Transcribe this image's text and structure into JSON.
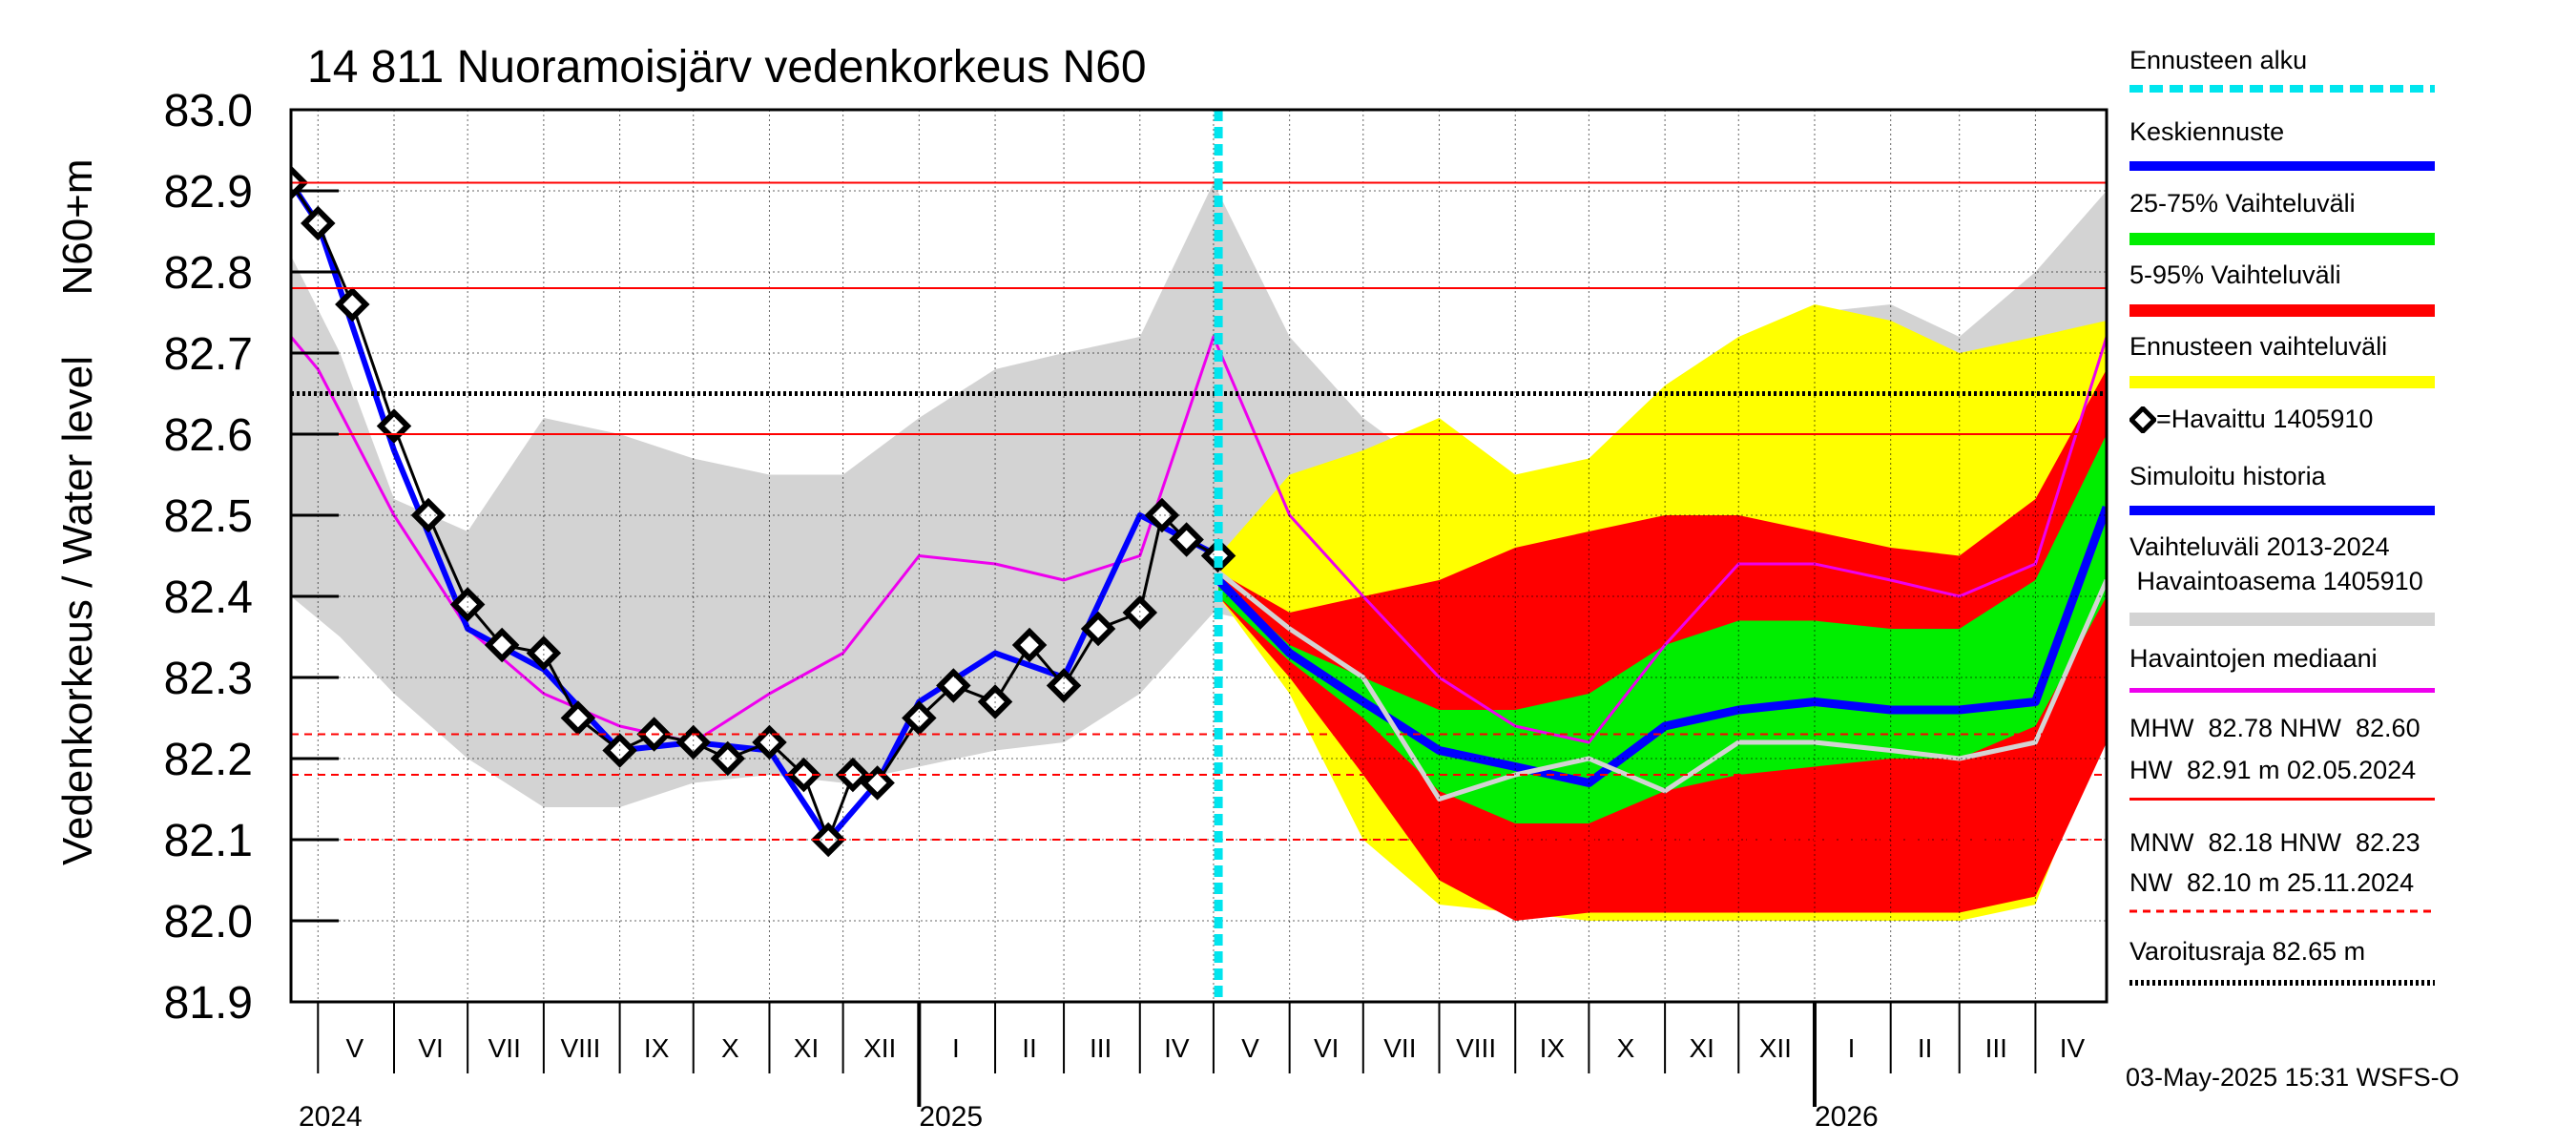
{
  "chart_data": {
    "type": "area",
    "title": "14 811 Nuoramoisjärv vedenkorkeus N60",
    "ylabel_left": "Vedenkorkeus / Water level",
    "ylabel_right": "N60+m",
    "ylim": [
      81.9,
      83.0
    ],
    "yticks": [
      "81.9",
      "82.0",
      "82.1",
      "82.2",
      "82.3",
      "82.4",
      "82.5",
      "82.6",
      "82.7",
      "82.8",
      "82.9",
      "83.0"
    ],
    "x_start": "2024-04-20",
    "x_end": "2026-04-30",
    "forecast_start": "2025-05-03",
    "month_labels": [
      {
        "date": "2024-05-16",
        "label": "V"
      },
      {
        "date": "2024-06-16",
        "label": "VI"
      },
      {
        "date": "2024-07-16",
        "label": "VII"
      },
      {
        "date": "2024-08-16",
        "label": "VIII"
      },
      {
        "date": "2024-09-16",
        "label": "IX"
      },
      {
        "date": "2024-10-16",
        "label": "X"
      },
      {
        "date": "2024-11-16",
        "label": "XI"
      },
      {
        "date": "2024-12-16",
        "label": "XII"
      },
      {
        "date": "2025-01-16",
        "label": "I"
      },
      {
        "date": "2025-02-15",
        "label": "II"
      },
      {
        "date": "2025-03-16",
        "label": "III"
      },
      {
        "date": "2025-04-16",
        "label": "IV"
      },
      {
        "date": "2025-05-16",
        "label": "V"
      },
      {
        "date": "2025-06-16",
        "label": "VI"
      },
      {
        "date": "2025-07-16",
        "label": "VII"
      },
      {
        "date": "2025-08-16",
        "label": "VIII"
      },
      {
        "date": "2025-09-16",
        "label": "IX"
      },
      {
        "date": "2025-10-16",
        "label": "X"
      },
      {
        "date": "2025-11-16",
        "label": "XI"
      },
      {
        "date": "2025-12-16",
        "label": "XII"
      },
      {
        "date": "2026-01-16",
        "label": "I"
      },
      {
        "date": "2026-02-15",
        "label": "II"
      },
      {
        "date": "2026-03-16",
        "label": "III"
      },
      {
        "date": "2026-04-16",
        "label": "IV"
      }
    ],
    "year_labels": [
      {
        "date": "2024-01-01",
        "label": "2024"
      },
      {
        "date": "2025-01-01",
        "label": "2025"
      },
      {
        "date": "2026-01-01",
        "label": "2026"
      }
    ],
    "reference_lines": [
      {
        "name": "HW",
        "value": 82.91,
        "style": "solid",
        "color": "#ff0000"
      },
      {
        "name": "MHW",
        "value": 82.78,
        "style": "solid",
        "color": "#ff0000"
      },
      {
        "name": "Varoitusraja",
        "value": 82.65,
        "style": "dotted",
        "color": "#000000"
      },
      {
        "name": "NHW",
        "value": 82.6,
        "style": "solid",
        "color": "#ff0000"
      },
      {
        "name": "HNW",
        "value": 82.23,
        "style": "dashed",
        "color": "#ff0000"
      },
      {
        "name": "MNW",
        "value": 82.18,
        "style": "dashed",
        "color": "#ff0000"
      },
      {
        "name": "NW",
        "value": 82.1,
        "style": "dashed",
        "color": "#ff0000"
      }
    ],
    "series": [
      {
        "name": "Vaihteluväli 2013-2024 Havaintoasema 1405910",
        "kind": "band",
        "color": "#d3d3d3",
        "x": [
          "2024-04-20",
          "2024-05-10",
          "2024-06-01",
          "2024-07-01",
          "2024-08-01",
          "2024-09-01",
          "2024-10-01",
          "2024-11-01",
          "2024-12-01",
          "2025-01-01",
          "2025-02-01",
          "2025-03-01",
          "2025-04-01",
          "2025-05-01",
          "2025-06-01",
          "2025-07-01",
          "2025-08-01",
          "2025-09-01",
          "2025-10-01",
          "2025-11-01",
          "2025-12-01",
          "2026-01-01",
          "2026-02-01",
          "2026-03-01",
          "2026-04-01",
          "2026-04-30"
        ],
        "upper": [
          82.82,
          82.7,
          82.52,
          82.48,
          82.62,
          82.6,
          82.57,
          82.55,
          82.55,
          82.62,
          82.68,
          82.7,
          82.72,
          82.91,
          82.72,
          82.62,
          82.55,
          82.5,
          82.56,
          82.66,
          82.72,
          82.75,
          82.76,
          82.72,
          82.8,
          82.9
        ],
        "lower": [
          82.4,
          82.35,
          82.28,
          82.2,
          82.14,
          82.14,
          82.17,
          82.18,
          82.17,
          82.19,
          82.21,
          82.22,
          82.28,
          82.38,
          82.36,
          82.31,
          82.27,
          82.22,
          82.17,
          82.22,
          82.22,
          82.22,
          82.22,
          82.22,
          82.25,
          82.42
        ]
      },
      {
        "name": "Ennusteen vaihteluväli",
        "kind": "band",
        "color": "#ffff00",
        "x": [
          "2025-05-03",
          "2025-06-01",
          "2025-07-01",
          "2025-08-01",
          "2025-09-01",
          "2025-10-01",
          "2025-11-01",
          "2025-12-01",
          "2026-01-01",
          "2026-02-01",
          "2026-03-01",
          "2026-04-01",
          "2026-04-30"
        ],
        "upper": [
          82.45,
          82.55,
          82.58,
          82.62,
          82.55,
          82.57,
          82.66,
          82.72,
          82.76,
          82.74,
          82.7,
          82.72,
          82.74
        ],
        "lower": [
          82.4,
          82.28,
          82.1,
          82.02,
          82.01,
          82.0,
          82.0,
          82.0,
          82.0,
          82.0,
          82.0,
          82.02,
          82.25
        ]
      },
      {
        "name": "5-95% Vaihteluväli",
        "kind": "band",
        "color": "#ff0000",
        "x": [
          "2025-05-03",
          "2025-06-01",
          "2025-07-01",
          "2025-08-01",
          "2025-09-01",
          "2025-10-01",
          "2025-11-01",
          "2025-12-01",
          "2026-01-01",
          "2026-02-01",
          "2026-03-01",
          "2026-04-01",
          "2026-04-30"
        ],
        "upper": [
          82.43,
          82.38,
          82.4,
          82.42,
          82.46,
          82.48,
          82.5,
          82.5,
          82.48,
          82.46,
          82.45,
          82.52,
          82.68
        ],
        "lower": [
          82.4,
          82.3,
          82.18,
          82.05,
          82.0,
          82.01,
          82.01,
          82.01,
          82.01,
          82.01,
          82.01,
          82.03,
          82.22
        ]
      },
      {
        "name": "25-75% Vaihteluväli",
        "kind": "band",
        "color": "#00ee00",
        "x": [
          "2025-05-03",
          "2025-06-01",
          "2025-07-01",
          "2025-08-01",
          "2025-09-01",
          "2025-10-01",
          "2025-11-01",
          "2025-12-01",
          "2026-01-01",
          "2026-02-01",
          "2026-03-01",
          "2026-04-01",
          "2026-04-30"
        ],
        "upper": [
          82.42,
          82.34,
          82.3,
          82.26,
          82.26,
          82.28,
          82.34,
          82.37,
          82.37,
          82.36,
          82.36,
          82.42,
          82.6
        ],
        "lower": [
          82.4,
          82.32,
          82.25,
          82.16,
          82.12,
          82.12,
          82.16,
          82.18,
          82.19,
          82.2,
          82.2,
          82.24,
          82.4
        ]
      },
      {
        "name": "Havaintojen mediaani",
        "kind": "line",
        "color": "#ee00ee",
        "x": [
          "2024-04-20",
          "2024-05-01",
          "2024-06-01",
          "2024-07-01",
          "2024-08-01",
          "2024-09-01",
          "2024-10-01",
          "2024-11-01",
          "2024-12-01",
          "2025-01-01",
          "2025-02-01",
          "2025-03-01",
          "2025-04-01",
          "2025-05-01",
          "2025-06-01",
          "2025-07-01",
          "2025-08-01",
          "2025-09-01",
          "2025-10-01",
          "2025-11-01",
          "2025-12-01",
          "2026-01-01",
          "2026-02-01",
          "2026-03-01",
          "2026-04-01",
          "2026-04-30"
        ],
        "y": [
          82.72,
          82.68,
          82.5,
          82.36,
          82.28,
          82.24,
          82.22,
          82.28,
          82.33,
          82.45,
          82.44,
          82.42,
          82.45,
          82.72,
          82.5,
          82.4,
          82.3,
          82.24,
          82.22,
          82.34,
          82.44,
          82.44,
          82.42,
          82.4,
          82.44,
          82.72
        ]
      },
      {
        "name": "Simuloitu historia",
        "kind": "line",
        "color": "#0000ff",
        "x": [
          "2024-04-20",
          "2024-05-01",
          "2024-06-01",
          "2024-07-01",
          "2024-08-01",
          "2024-09-01",
          "2024-10-01",
          "2024-11-01",
          "2024-11-25",
          "2024-12-15",
          "2025-01-01",
          "2025-02-01",
          "2025-03-01",
          "2025-04-01",
          "2025-05-03"
        ],
        "y": [
          82.91,
          82.86,
          82.58,
          82.36,
          82.31,
          82.21,
          82.22,
          82.21,
          82.1,
          82.17,
          82.27,
          82.33,
          82.3,
          82.5,
          82.45
        ]
      },
      {
        "name": "Havaittu 1405910",
        "kind": "markers",
        "color": "#000000",
        "x": [
          "2024-04-20",
          "2024-05-01",
          "2024-05-15",
          "2024-06-01",
          "2024-06-15",
          "2024-07-01",
          "2024-07-15",
          "2024-08-01",
          "2024-08-15",
          "2024-09-01",
          "2024-09-15",
          "2024-10-01",
          "2024-10-15",
          "2024-11-01",
          "2024-11-15",
          "2024-11-25",
          "2024-12-05",
          "2024-12-15",
          "2025-01-01",
          "2025-01-15",
          "2025-02-01",
          "2025-02-15",
          "2025-03-01",
          "2025-03-15",
          "2025-04-01",
          "2025-04-10",
          "2025-04-20",
          "2025-05-03"
        ],
        "y": [
          82.91,
          82.86,
          82.76,
          82.61,
          82.5,
          82.39,
          82.34,
          82.33,
          82.25,
          82.21,
          82.23,
          82.22,
          82.2,
          82.22,
          82.18,
          82.1,
          82.18,
          82.17,
          82.25,
          82.29,
          82.27,
          82.34,
          82.29,
          82.36,
          82.38,
          82.5,
          82.47,
          82.45
        ]
      },
      {
        "name": "Keskiennuste",
        "kind": "line",
        "color": "#0000ff",
        "x": [
          "2025-05-03",
          "2025-06-01",
          "2025-07-01",
          "2025-08-01",
          "2025-09-01",
          "2025-10-01",
          "2025-11-01",
          "2025-12-01",
          "2026-01-01",
          "2026-02-01",
          "2026-03-01",
          "2026-04-01",
          "2026-04-30"
        ],
        "y": [
          82.42,
          82.33,
          82.27,
          82.21,
          82.19,
          82.17,
          82.24,
          82.26,
          82.27,
          82.26,
          82.26,
          82.27,
          82.51
        ]
      },
      {
        "name": "Vaihteluväli median",
        "kind": "line",
        "color": "#d3d3d3",
        "x": [
          "2025-05-03",
          "2025-06-01",
          "2025-07-01",
          "2025-08-01",
          "2025-09-01",
          "2025-10-01",
          "2025-11-01",
          "2025-12-01",
          "2026-01-01",
          "2026-02-01",
          "2026-03-01",
          "2026-04-01",
          "2026-04-30"
        ],
        "y": [
          82.43,
          82.36,
          82.3,
          82.15,
          82.18,
          82.2,
          82.16,
          82.22,
          82.22,
          82.21,
          82.2,
          82.22,
          82.42
        ]
      }
    ]
  },
  "legend": {
    "forecast_start": "Ennusteen alku",
    "mean_forecast": "Keskiennuste",
    "band_25_75": "25-75% Vaihteluväli",
    "band_5_95": "5-95% Vaihteluväli",
    "forecast_range": "Ennusteen vaihteluväli",
    "observed": "=Havaittu 1405910",
    "simulated": "Simuloitu historia",
    "range_line1": "Vaihteluväli 2013-2024",
    "range_line2": " Havaintoasema 1405910",
    "median": "Havaintojen mediaani",
    "stats_high_1": "MHW  82.78 NHW  82.60",
    "stats_high_2": "HW  82.91 m 02.05.2024",
    "stats_low_1": "MNW  82.18 HNW  82.23",
    "stats_low_2": "NW  82.10 m 25.11.2024",
    "warning": "Varoitusraja 82.65 m"
  },
  "colors": {
    "forecast_start": "#00e5ee",
    "mean_forecast": "#0000ff",
    "band_25_75": "#00ee00",
    "band_5_95": "#ff0000",
    "forecast_range": "#ffff00",
    "simulated": "#0000ff",
    "range": "#d3d3d3",
    "median": "#ee00ee",
    "ref_line": "#ff0000",
    "warning": "#000000"
  },
  "footer": "03-May-2025 15:31 WSFS-O"
}
